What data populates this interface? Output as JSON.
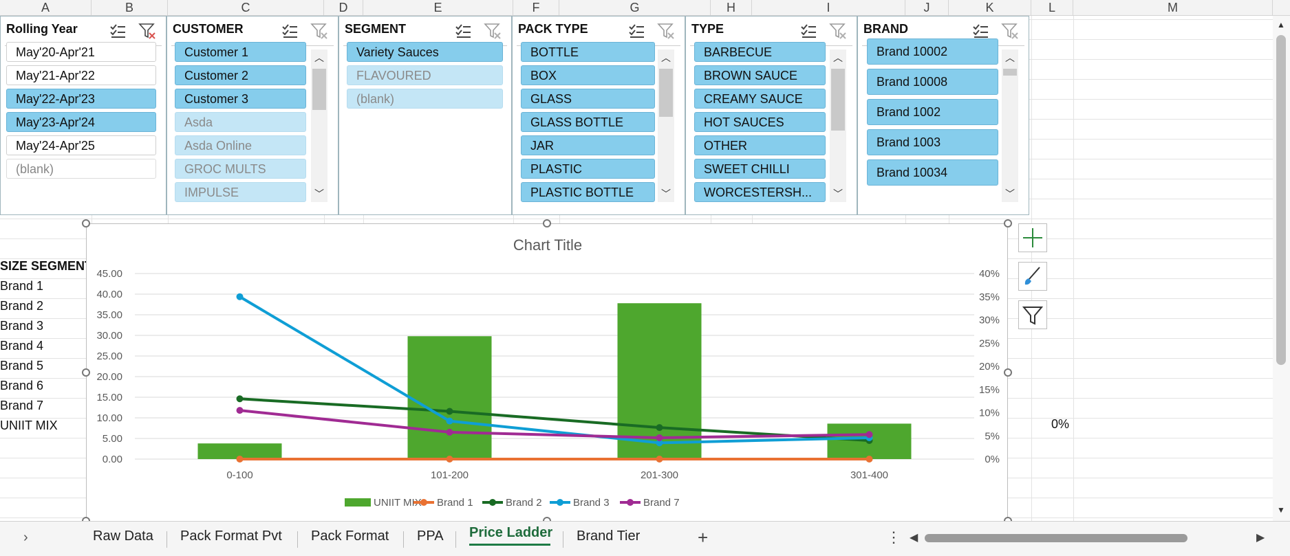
{
  "columns": [
    "A",
    "B",
    "C",
    "D",
    "E",
    "F",
    "G",
    "H",
    "I",
    "J",
    "K",
    "L",
    "M"
  ],
  "slicers": [
    {
      "title": "Rolling Year",
      "items": [
        {
          "label": "May'20-Apr'21",
          "state": "unsel"
        },
        {
          "label": "May'21-Apr'22",
          "state": "unsel"
        },
        {
          "label": "May'22-Apr'23",
          "state": "sel"
        },
        {
          "label": "May'23-Apr'24",
          "state": "sel"
        },
        {
          "label": "May'24-Apr'25",
          "state": "unsel"
        },
        {
          "label": "(blank)",
          "state": "blank"
        }
      ]
    },
    {
      "title": "CUSTOMER",
      "items": [
        {
          "label": "Customer 1",
          "state": "sel"
        },
        {
          "label": "Customer 2",
          "state": "sel"
        },
        {
          "label": "Customer 3",
          "state": "sel"
        },
        {
          "label": "Asda",
          "state": "nodata"
        },
        {
          "label": "Asda Online",
          "state": "nodata"
        },
        {
          "label": "GROC MULTS",
          "state": "nodata"
        },
        {
          "label": "IMPULSE",
          "state": "nodata"
        }
      ]
    },
    {
      "title": "SEGMENT",
      "items": [
        {
          "label": "Variety Sauces",
          "state": "sel"
        },
        {
          "label": "FLAVOURED",
          "state": "nodata"
        },
        {
          "label": "(blank)",
          "state": "nodata"
        }
      ]
    },
    {
      "title": "PACK TYPE",
      "items": [
        {
          "label": "BOTTLE",
          "state": "sel"
        },
        {
          "label": "BOX",
          "state": "sel"
        },
        {
          "label": "GLASS",
          "state": "sel"
        },
        {
          "label": "GLASS BOTTLE",
          "state": "sel"
        },
        {
          "label": "JAR",
          "state": "sel"
        },
        {
          "label": "PLASTIC",
          "state": "sel"
        },
        {
          "label": "PLASTIC BOTTLE",
          "state": "sel"
        }
      ]
    },
    {
      "title": "TYPE",
      "items": [
        {
          "label": "BARBECUE",
          "state": "sel"
        },
        {
          "label": "BROWN SAUCE",
          "state": "sel"
        },
        {
          "label": "CREAMY SAUCE",
          "state": "sel"
        },
        {
          "label": "HOT SAUCES",
          "state": "sel"
        },
        {
          "label": "OTHER",
          "state": "sel"
        },
        {
          "label": "SWEET CHILLI",
          "state": "sel"
        },
        {
          "label": "WORCESTERSH...",
          "state": "sel"
        }
      ]
    },
    {
      "title": "BRAND",
      "items": [
        {
          "label": "Brand 10002",
          "state": "sel"
        },
        {
          "label": "Brand 10008",
          "state": "sel"
        },
        {
          "label": "Brand 1002",
          "state": "sel"
        },
        {
          "label": "Brand 1003",
          "state": "sel"
        },
        {
          "label": "Brand 10034",
          "state": "sel"
        }
      ]
    }
  ],
  "cells": {
    "header": "SIZE SEGMENT",
    "rows": [
      "Brand 1",
      "Brand 2",
      "Brand 3",
      "Brand 4",
      "Brand 5",
      "Brand 6",
      "Brand 7",
      "UNIIT MIX"
    ],
    "pct": "0%"
  },
  "chart_data": {
    "type": "bar",
    "title": "Chart Title",
    "categories": [
      "0-100",
      "101-200",
      "201-300",
      "301-400"
    ],
    "ylim": [
      0,
      45
    ],
    "yticks": [
      "0.00",
      "5.00",
      "10.00",
      "15.00",
      "20.00",
      "25.00",
      "30.00",
      "35.00",
      "40.00",
      "45.00"
    ],
    "y2lim": [
      0,
      40
    ],
    "y2ticks": [
      "0%",
      "5%",
      "10%",
      "15%",
      "20%",
      "25%",
      "30%",
      "35%",
      "40%"
    ],
    "bar_series": {
      "name": "UNIIT MIX",
      "values": [
        3.8,
        29.8,
        37.8,
        8.6
      ],
      "color": "#4ea72e"
    },
    "line_series": [
      {
        "name": "Brand 1",
        "values": [
          0,
          0,
          0,
          0
        ],
        "color": "#e97132"
      },
      {
        "name": "Brand 2",
        "values": [
          13,
          10.3,
          6.8,
          4
        ],
        "color": "#196b24"
      },
      {
        "name": "Brand 3",
        "values": [
          35,
          8.2,
          3.5,
          4.6
        ],
        "color": "#0f9ed5"
      },
      {
        "name": "Brand 7",
        "values": [
          10.5,
          5.8,
          4.6,
          5.3
        ],
        "color": "#a02b93"
      }
    ],
    "legend_position": "bottom",
    "grid": true
  },
  "chart_buttons": [
    "chart-elements-icon",
    "chart-styles-icon",
    "chart-filters-icon"
  ],
  "tabs": [
    "Raw Data",
    "Pack Format Pvt",
    "Pack Format",
    "PPA",
    "Price Ladder",
    "Brand Tier"
  ],
  "active_tab": "Price Ladder"
}
